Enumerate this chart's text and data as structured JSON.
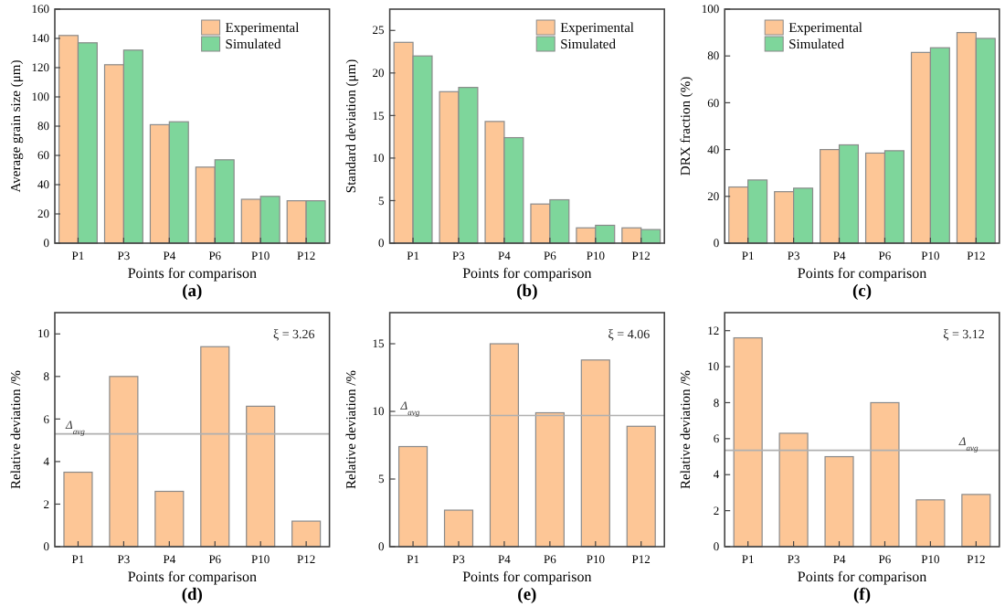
{
  "chart_data": [
    {
      "type": "bar",
      "title": "(a)",
      "xlabel": "Points for comparison",
      "ylabel": "Average grain size (μm)",
      "categories": [
        "P1",
        "P3",
        "P4",
        "P6",
        "P10",
        "P12"
      ],
      "series": [
        {
          "name": "Experimental",
          "color": "#fdc696",
          "values": [
            142,
            122,
            81,
            52,
            30,
            29
          ]
        },
        {
          "name": "Simulated",
          "color": "#7ed69b",
          "values": [
            137,
            132,
            83,
            57,
            32,
            29
          ]
        }
      ],
      "ylim": [
        0,
        160
      ],
      "yticks": [
        0,
        20,
        40,
        60,
        80,
        100,
        120,
        140,
        160
      ],
      "legend": "top right",
      "grid": false
    },
    {
      "type": "bar",
      "title": "(b)",
      "xlabel": "Points for comparison",
      "ylabel": "Standard deviation (μm)",
      "categories": [
        "P1",
        "P3",
        "P4",
        "P6",
        "P10",
        "P12"
      ],
      "series": [
        {
          "name": "Experimental",
          "color": "#fdc696",
          "values": [
            23.6,
            17.8,
            14.3,
            4.6,
            1.8,
            1.8
          ]
        },
        {
          "name": "Simulated",
          "color": "#7ed69b",
          "values": [
            22,
            18.3,
            12.4,
            5.1,
            2.1,
            1.6
          ]
        }
      ],
      "ylim": [
        0,
        27.5
      ],
      "yticks": [
        0,
        5,
        10,
        15,
        20,
        25
      ],
      "legend": "top right",
      "grid": false
    },
    {
      "type": "bar",
      "title": "(c)",
      "xlabel": "Points for comparison",
      "ylabel": "DRX fraction (%)",
      "categories": [
        "P1",
        "P3",
        "P4",
        "P6",
        "P10",
        "P12"
      ],
      "series": [
        {
          "name": "Experimental",
          "color": "#fdc696",
          "values": [
            24,
            22,
            40,
            38.5,
            81.5,
            90
          ]
        },
        {
          "name": "Simulated",
          "color": "#7ed69b",
          "values": [
            27,
            23.5,
            42,
            39.5,
            83.5,
            87.5
          ]
        }
      ],
      "ylim": [
        0,
        100
      ],
      "yticks": [
        0,
        20,
        40,
        60,
        80,
        100
      ],
      "legend": "top left",
      "grid": false
    },
    {
      "type": "bar",
      "title": "(d)",
      "xlabel": "Points for comparison",
      "ylabel": "Relative deviation /%",
      "categories": [
        "P1",
        "P3",
        "P4",
        "P6",
        "P10",
        "P12"
      ],
      "series": [
        {
          "color": "#fdc696",
          "values": [
            3.5,
            8,
            2.6,
            9.4,
            6.6,
            1.2
          ]
        }
      ],
      "ylim": [
        0,
        11
      ],
      "yticks": [
        0,
        2,
        4,
        6,
        8,
        10
      ],
      "grid": false,
      "ref_lines": [
        {
          "axis": "y",
          "value": 5.3,
          "label": "Δ$_{avg}$",
          "color": "#b0b0b0"
        }
      ],
      "annotations": [
        "ξ = 3.26"
      ]
    },
    {
      "type": "bar",
      "title": "(e)",
      "xlabel": "Points for comparison",
      "ylabel": "Relative deviation /%",
      "categories": [
        "P1",
        "P3",
        "P4",
        "P6",
        "P10",
        "P12"
      ],
      "series": [
        {
          "color": "#fdc696",
          "values": [
            7.4,
            2.7,
            15,
            9.9,
            13.8,
            8.9
          ]
        }
      ],
      "ylim": [
        0,
        17.3
      ],
      "yticks": [
        0,
        5,
        10,
        15
      ],
      "grid": false,
      "ref_lines": [
        {
          "axis": "y",
          "value": 9.7,
          "label": "Δ$_{avg}$",
          "color": "#b0b0b0"
        }
      ],
      "annotations": [
        "ξ = 4.06"
      ]
    },
    {
      "type": "bar",
      "title": "(f)",
      "xlabel": "Points for comparison",
      "ylabel": "Relative deviation /%",
      "categories": [
        "P1",
        "P3",
        "P4",
        "P6",
        "P10",
        "P12"
      ],
      "series": [
        {
          "color": "#fdc696",
          "values": [
            11.6,
            6.3,
            5.0,
            8.0,
            2.6,
            2.9
          ]
        }
      ],
      "ylim": [
        0,
        13
      ],
      "yticks": [
        0,
        2,
        4,
        6,
        8,
        10,
        12
      ],
      "grid": false,
      "ref_lines": [
        {
          "axis": "y",
          "value": 5.35,
          "label": "Δ$_{avg}$",
          "color": "#b0b0b0"
        }
      ],
      "annotations": [
        "ξ = 3.12"
      ]
    }
  ]
}
